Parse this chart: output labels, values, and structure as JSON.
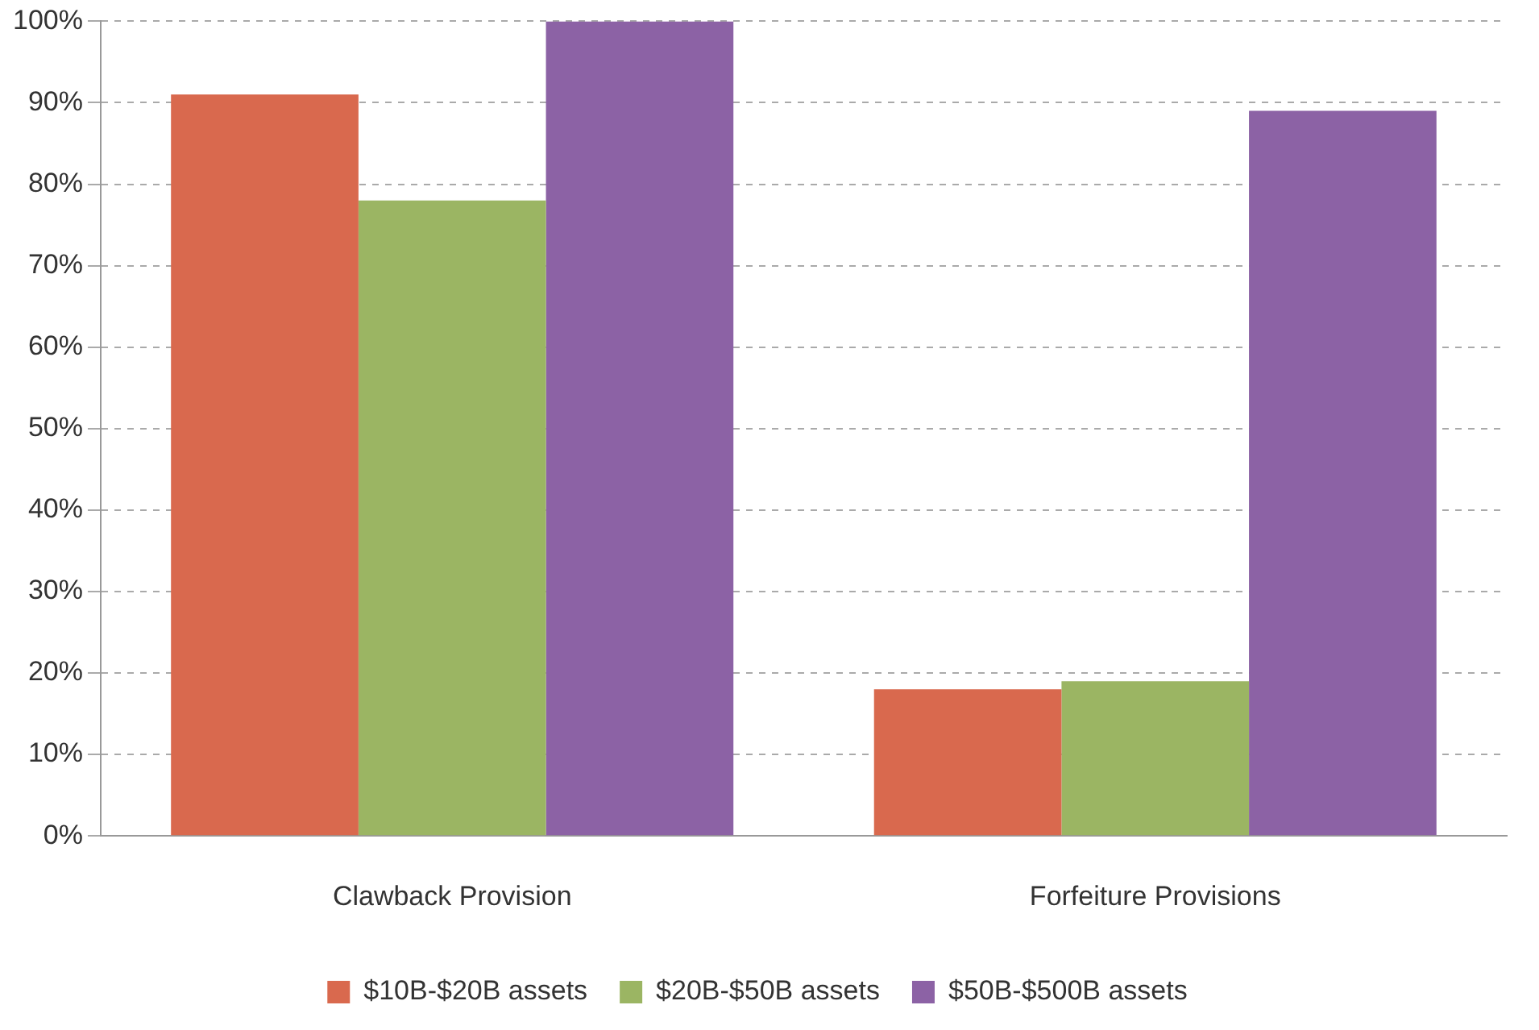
{
  "chart_data": {
    "type": "bar",
    "categories": [
      "Clawback Provision",
      "Forfeiture Provisions"
    ],
    "series": [
      {
        "name": "$10B-$20B assets",
        "color": "#d9694e",
        "values": [
          91,
          18
        ]
      },
      {
        "name": "$20B-$50B assets",
        "color": "#9bb563",
        "values": [
          78,
          19
        ]
      },
      {
        "name": "$50B-$500B assets",
        "color": "#8c62a5",
        "values": [
          100,
          89
        ]
      }
    ],
    "ylim": [
      0,
      100
    ],
    "yticks": [
      {
        "value": 0,
        "label": "0%"
      },
      {
        "value": 10,
        "label": "10%"
      },
      {
        "value": 20,
        "label": "20%"
      },
      {
        "value": 30,
        "label": "30%"
      },
      {
        "value": 40,
        "label": "40%"
      },
      {
        "value": 50,
        "label": "50%"
      },
      {
        "value": 60,
        "label": "60%"
      },
      {
        "value": 70,
        "label": "70%"
      },
      {
        "value": 80,
        "label": "80%"
      },
      {
        "value": 90,
        "label": "90%"
      },
      {
        "value": 100,
        "label": "100%"
      }
    ],
    "grid": "y",
    "legend": "bottom"
  }
}
